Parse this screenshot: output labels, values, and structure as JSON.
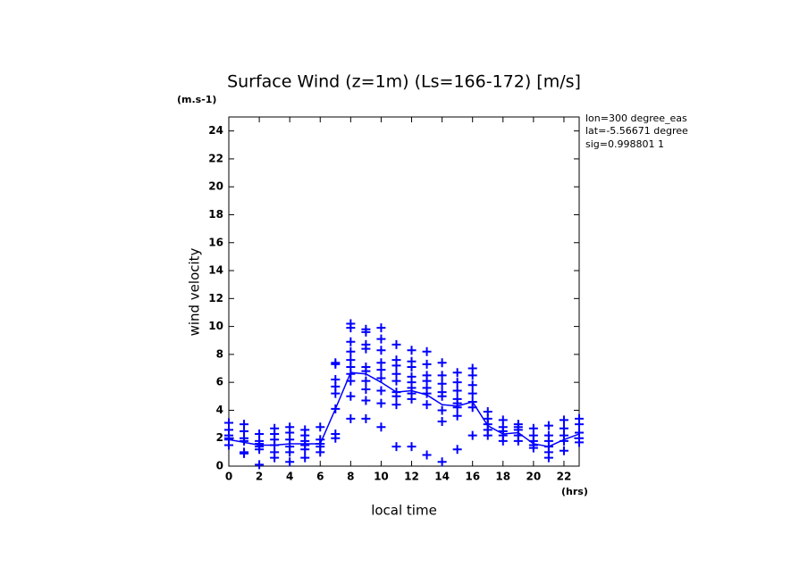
{
  "chart_data": {
    "type": "scatter",
    "title": "Surface Wind (z=1m) (Ls=166-172) [m/s]",
    "y_unit": "(m.s-1)",
    "x_unit": "(hrs)",
    "x_label": "local time",
    "y_label": "wind velocity",
    "annotations": [
      "lon=300 degree_eas",
      "lat=-5.56671 degree",
      "sig=0.998801 1"
    ],
    "xlim": [
      0,
      23
    ],
    "ylim": [
      0,
      25
    ],
    "xticks": [
      0,
      2,
      4,
      6,
      8,
      10,
      12,
      14,
      16,
      18,
      20,
      22
    ],
    "yticks": [
      0,
      2,
      4,
      6,
      8,
      10,
      12,
      14,
      16,
      18,
      20,
      22,
      24
    ],
    "series": [
      {
        "color": "#0000ff",
        "mode": "markers",
        "x": [
          0,
          0,
          0,
          0,
          0,
          0,
          1,
          1,
          1,
          1,
          1,
          1,
          2,
          2,
          2,
          2,
          2,
          2,
          3,
          3,
          3,
          3,
          3,
          3,
          4,
          4,
          4,
          4,
          4,
          4,
          5,
          5,
          5,
          5,
          5,
          5,
          6,
          6,
          6,
          6,
          6,
          7,
          7,
          7,
          7,
          7,
          7,
          7,
          7,
          8,
          8,
          8,
          8,
          8,
          8,
          8,
          8,
          8,
          8,
          9,
          9,
          9,
          9,
          9,
          9,
          9,
          9,
          9,
          9,
          10,
          10,
          10,
          10,
          10,
          10,
          10,
          10,
          10,
          11,
          11,
          11,
          11,
          11,
          11,
          11,
          11,
          11,
          12,
          12,
          12,
          12,
          12,
          12,
          12,
          12,
          12,
          13,
          13,
          13,
          13,
          13,
          13,
          13,
          13,
          14,
          14,
          14,
          14,
          14,
          14,
          14,
          14,
          15,
          15,
          15,
          15,
          15,
          15,
          15,
          15,
          16,
          16,
          16,
          16,
          16,
          16,
          16,
          17,
          17,
          17,
          17,
          17,
          18,
          18,
          18,
          18,
          18,
          19,
          19,
          19,
          19,
          19,
          20,
          20,
          20,
          20,
          20,
          21,
          21,
          21,
          21,
          21,
          21,
          22,
          22,
          22,
          22,
          22,
          23,
          23,
          23,
          23,
          23
        ],
        "values": [
          3.1,
          2.6,
          2.2,
          2.0,
          1.9,
          1.5,
          3.0,
          2.5,
          2.0,
          1.8,
          1.0,
          0.9,
          2.3,
          1.8,
          1.6,
          1.4,
          1.2,
          0.1,
          2.7,
          2.3,
          1.9,
          1.5,
          1.0,
          0.6,
          2.8,
          2.4,
          1.9,
          1.4,
          1.0,
          0.3,
          2.6,
          2.2,
          1.8,
          1.5,
          1.2,
          0.6,
          2.8,
          1.9,
          1.6,
          1.4,
          1.0,
          7.4,
          7.3,
          6.2,
          5.7,
          5.2,
          4.1,
          2.3,
          2.0,
          10.2,
          9.9,
          8.9,
          8.2,
          7.6,
          7.1,
          6.6,
          6.1,
          5.0,
          3.4,
          9.8,
          9.6,
          8.7,
          8.4,
          7.1,
          6.8,
          6.1,
          5.5,
          4.7,
          3.4,
          9.9,
          9.1,
          8.3,
          7.4,
          6.9,
          6.3,
          5.4,
          4.5,
          2.8,
          8.7,
          7.6,
          7.2,
          6.6,
          6.1,
          5.3,
          5.0,
          4.4,
          1.4,
          8.3,
          7.5,
          7.1,
          6.4,
          6.0,
          5.6,
          5.2,
          4.8,
          1.4,
          8.2,
          7.3,
          6.5,
          6.1,
          5.6,
          5.2,
          4.4,
          0.8,
          7.4,
          6.5,
          5.9,
          5.3,
          5.0,
          4.0,
          3.2,
          0.3,
          6.7,
          6.0,
          5.4,
          4.8,
          4.5,
          4.2,
          3.6,
          1.2,
          7.0,
          6.5,
          5.8,
          5.2,
          4.6,
          4.2,
          2.2,
          3.9,
          3.4,
          3.0,
          2.6,
          2.2,
          3.3,
          2.8,
          2.5,
          2.2,
          1.8,
          3.0,
          2.8,
          2.6,
          2.2,
          1.8,
          2.7,
          2.2,
          1.8,
          1.5,
          1.3,
          2.9,
          2.2,
          1.8,
          1.4,
          1.0,
          0.6,
          3.3,
          2.7,
          2.2,
          1.8,
          1.1,
          3.4,
          3.0,
          2.4,
          2.0,
          1.7
        ]
      },
      {
        "color": "#0000ff",
        "mode": "line",
        "x": [
          0,
          1,
          2,
          3,
          4,
          5,
          6,
          7,
          8,
          9,
          10,
          11,
          12,
          13,
          14,
          15,
          16,
          17,
          18,
          19,
          20,
          21,
          22,
          23
        ],
        "values": [
          1.9,
          1.7,
          1.5,
          1.5,
          1.6,
          1.6,
          1.6,
          4.1,
          6.7,
          6.6,
          6.0,
          5.3,
          5.4,
          5.1,
          4.4,
          4.3,
          4.6,
          2.9,
          2.3,
          2.4,
          1.6,
          1.4,
          1.9,
          2.3
        ]
      }
    ]
  }
}
